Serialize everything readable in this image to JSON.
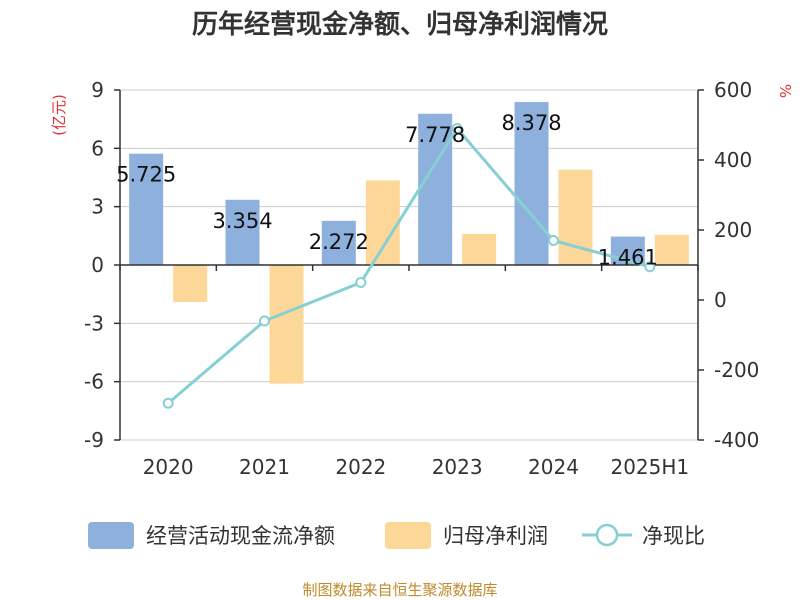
{
  "chart_data": {
    "type": "bar",
    "title": "历年经营现金净额、归母净利润情况",
    "categories": [
      "2020",
      "2021",
      "2022",
      "2023",
      "2024",
      "2025H1"
    ],
    "series": [
      {
        "name": "经营活动现金流净额",
        "type": "bar",
        "axis": "left",
        "values": [
          5.725,
          3.354,
          2.272,
          7.778,
          8.378,
          1.461
        ],
        "color": "#8eb0dc",
        "labels": [
          "5.725",
          "3.354",
          "2.272",
          "7.778",
          "8.378",
          "1.461"
        ]
      },
      {
        "name": "归母净利润",
        "type": "bar",
        "axis": "left",
        "values": [
          -1.9,
          -6.1,
          4.35,
          1.6,
          4.9,
          1.55
        ],
        "color": "#fdd797"
      },
      {
        "name": "净现比",
        "type": "line",
        "axis": "right",
        "values": [
          -295,
          -60,
          50,
          490,
          170,
          95
        ],
        "color": "#86d0d4"
      }
    ],
    "yleft": {
      "unit": "(亿元)",
      "ylim": [
        -9,
        9
      ],
      "ticks": [
        9,
        6,
        3,
        0,
        -3,
        -6,
        -9
      ],
      "tick_labels": [
        "9",
        "6",
        "3",
        "0",
        "-3",
        "-6",
        "-9"
      ]
    },
    "yright": {
      "unit": "%",
      "ylim": [
        -400,
        600
      ],
      "ticks": [
        600,
        400,
        200,
        0,
        -200,
        -400
      ],
      "tick_labels": [
        "600",
        "400",
        "200",
        "0",
        "-200",
        "-400"
      ]
    },
    "grid": true,
    "legend": "bottom",
    "source": "制图数据来自恒生聚源数据库"
  }
}
